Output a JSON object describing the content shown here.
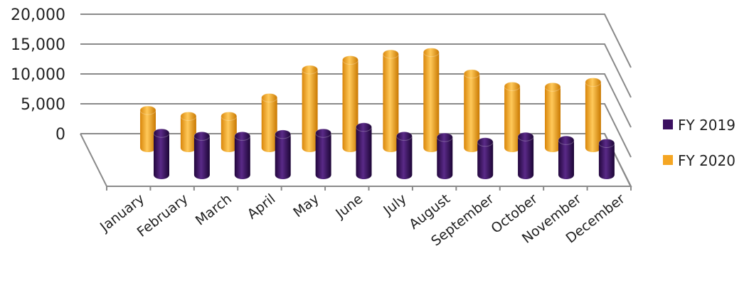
{
  "chart_data": {
    "type": "bar",
    "title": "",
    "xlabel": "",
    "ylabel": "",
    "categories": [
      "January",
      "February",
      "March",
      "April",
      "May",
      "June",
      "July",
      "August",
      "September",
      "October",
      "November",
      "December"
    ],
    "y_ticks": [
      "0",
      "5,000",
      "10,000",
      "15,000",
      "20,000"
    ],
    "ylim": [
      0,
      20000
    ],
    "grid": true,
    "legend_position": "right",
    "series": [
      {
        "name": "FY 2019",
        "color": "#3B1060",
        "values": [
          7000,
          6500,
          6500,
          6800,
          7000,
          8000,
          6500,
          6300,
          5500,
          6400,
          5800,
          5300
        ]
      },
      {
        "name": "FY 2020",
        "color": "#F5A623",
        "values": [
          6300,
          5300,
          5300,
          8400,
          13100,
          14700,
          15700,
          16000,
          12400,
          10300,
          10200,
          11000
        ]
      }
    ]
  }
}
